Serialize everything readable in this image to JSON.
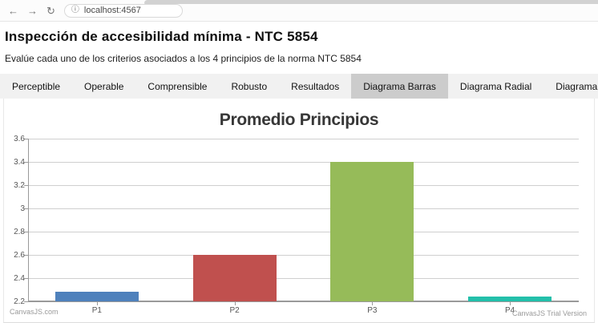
{
  "browser": {
    "url": "localhost:4567",
    "back_icon": "←",
    "forward_icon": "→",
    "refresh_icon": "↻",
    "info_icon": "ⓘ"
  },
  "header": {
    "title": "Inspección de accesibilidad mínima - NTC 5854",
    "subtitle": "Evalúe cada uno de los criterios asociados a los 4 principios de la norma NTC 5854"
  },
  "tabs": {
    "items": [
      "Perceptible",
      "Operable",
      "Comprensible",
      "Robusto",
      "Resultados",
      "Diagrama Barras",
      "Diagrama Radial",
      "Diagrama Porcentaje"
    ],
    "active": "Diagrama Barras"
  },
  "chart_data": {
    "type": "bar",
    "title": "Promedio Principios",
    "categories": [
      "P1",
      "P2",
      "P3",
      "P4"
    ],
    "values": [
      2.28,
      2.6,
      3.4,
      2.24
    ],
    "colors": [
      "#4F81BC",
      "#C0504E",
      "#96BB59",
      "#23BFAA"
    ],
    "xlabel": "",
    "ylabel": "",
    "ylim": [
      2.2,
      3.6
    ],
    "ytick_step": 0.2,
    "ytick_labels": [
      "2.2",
      "2.4",
      "2.6",
      "2.8",
      "3",
      "3.2",
      "3.4",
      "3.6"
    ],
    "grid": true,
    "legend_position": "none"
  },
  "chart_credits": {
    "left": "CanvasJS.com",
    "right": "CanvasJS Trial Version"
  }
}
